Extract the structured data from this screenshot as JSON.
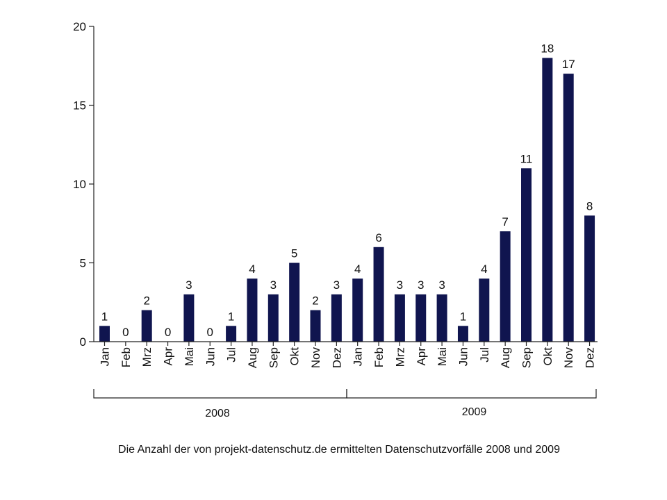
{
  "chart_data": {
    "type": "bar",
    "caption": "Die Anzahl der von projekt-datenschutz.de ermittelten Datenschutzvorfälle 2008 und 2009",
    "ylim": [
      0,
      20
    ],
    "yticks": [
      0,
      5,
      10,
      15,
      20
    ],
    "categories": [
      "Jan",
      "Feb",
      "Mrz",
      "Apr",
      "Mai",
      "Jun",
      "Jul",
      "Aug",
      "Sep",
      "Okt",
      "Nov",
      "Dez",
      "Jan",
      "Feb",
      "Mrz",
      "Apr",
      "Mai",
      "Jun",
      "Jul",
      "Aug",
      "Sep",
      "Okt",
      "Nov",
      "Dez"
    ],
    "values": [
      1,
      0,
      2,
      0,
      3,
      0,
      1,
      4,
      3,
      5,
      2,
      3,
      4,
      6,
      3,
      3,
      3,
      1,
      4,
      7,
      11,
      18,
      17,
      8
    ],
    "groups": [
      {
        "label": "2008",
        "count": 12
      },
      {
        "label": "2009",
        "count": 12
      }
    ],
    "colors": {
      "bar": "#10154f"
    }
  }
}
